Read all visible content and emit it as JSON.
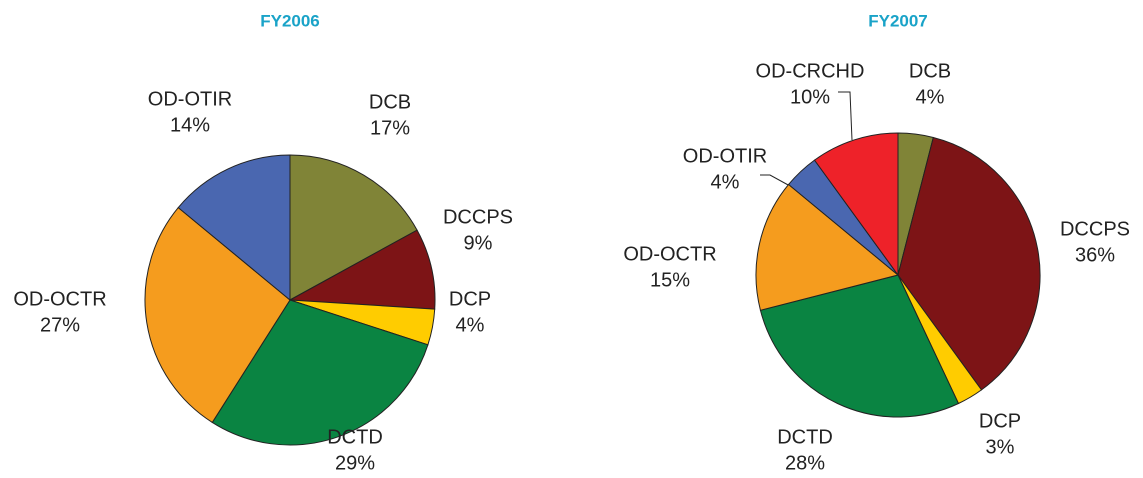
{
  "chart_data": [
    {
      "type": "pie",
      "title": "FY2006",
      "categories": [
        "DCB",
        "DCCPS",
        "DCP",
        "DCTD",
        "OD-OCTR",
        "OD-OTIR"
      ],
      "values": [
        17,
        9,
        4,
        29,
        27,
        14
      ],
      "value_labels": [
        "17%",
        "9%",
        "4%",
        "29%",
        "27%",
        "14%"
      ],
      "colors": [
        "#808437",
        "#7d1416",
        "#ffcc00",
        "#0a8442",
        "#f59c1e",
        "#4a67b0"
      ]
    },
    {
      "type": "pie",
      "title": "FY2007",
      "categories": [
        "DCB",
        "DCCPS",
        "DCP",
        "DCTD",
        "OD-OCTR",
        "OD-OTIR",
        "OD-CRCHD"
      ],
      "values": [
        4,
        36,
        3,
        28,
        15,
        4,
        10
      ],
      "value_labels": [
        "4%",
        "36%",
        "3%",
        "28%",
        "15%",
        "4%",
        "10%"
      ],
      "colors": [
        "#808437",
        "#7d1416",
        "#ffcc00",
        "#0a8442",
        "#f59c1e",
        "#4a67b0",
        "#ee2229"
      ]
    }
  ]
}
